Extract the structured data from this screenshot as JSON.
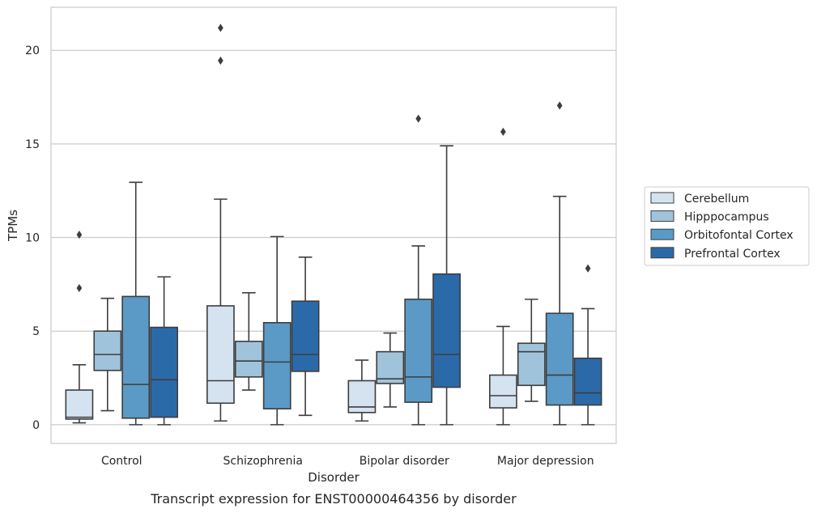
{
  "chart_data": {
    "type": "box",
    "caption": "Transcript expression for ENST00000464356 by disorder",
    "xlabel": "Disorder",
    "ylabel": "TPMs",
    "ylim": [
      -1,
      22.3
    ],
    "yticks": [
      0,
      5,
      10,
      15,
      20
    ],
    "grid": "horizontal",
    "legend_position": "right",
    "categories": [
      "Control",
      "Schizophrenia",
      "Bipolar disorder",
      "Major depression"
    ],
    "series": [
      {
        "name": "Cerebellum",
        "color": "#d5e3f1",
        "boxes": [
          {
            "whislo": 0.1,
            "q1": 0.3,
            "med": 0.4,
            "q3": 1.85,
            "whishi": 3.2,
            "fliers": [
              7.3,
              10.15
            ]
          },
          {
            "whislo": 0.2,
            "q1": 1.15,
            "med": 2.35,
            "q3": 6.35,
            "whishi": 12.05,
            "fliers": [
              19.45,
              21.2
            ]
          },
          {
            "whislo": 0.2,
            "q1": 0.65,
            "med": 0.95,
            "q3": 2.35,
            "whishi": 3.45,
            "fliers": []
          },
          {
            "whislo": 0.0,
            "q1": 0.9,
            "med": 1.55,
            "q3": 2.65,
            "whishi": 5.25,
            "fliers": [
              15.65
            ]
          }
        ]
      },
      {
        "name": "Hipppocampus",
        "color": "#9fc3da",
        "boxes": [
          {
            "whislo": 0.75,
            "q1": 2.9,
            "med": 3.75,
            "q3": 5.0,
            "whishi": 6.75,
            "fliers": []
          },
          {
            "whislo": 1.85,
            "q1": 2.55,
            "med": 3.4,
            "q3": 4.45,
            "whishi": 7.05,
            "fliers": []
          },
          {
            "whislo": 0.95,
            "q1": 2.2,
            "med": 2.45,
            "q3": 3.9,
            "whishi": 4.9,
            "fliers": []
          },
          {
            "whislo": 1.25,
            "q1": 2.1,
            "med": 3.9,
            "q3": 4.35,
            "whishi": 6.7,
            "fliers": []
          }
        ]
      },
      {
        "name": "Orbitofontal Cortex",
        "color": "#5b9ac6",
        "boxes": [
          {
            "whislo": 0.0,
            "q1": 0.35,
            "med": 2.15,
            "q3": 6.85,
            "whishi": 12.95,
            "fliers": []
          },
          {
            "whislo": 0.0,
            "q1": 0.85,
            "med": 3.35,
            "q3": 5.45,
            "whishi": 10.05,
            "fliers": []
          },
          {
            "whislo": 0.0,
            "q1": 1.2,
            "med": 2.55,
            "q3": 6.7,
            "whishi": 9.55,
            "fliers": [
              16.35
            ]
          },
          {
            "whislo": 0.0,
            "q1": 1.05,
            "med": 2.65,
            "q3": 5.95,
            "whishi": 12.2,
            "fliers": [
              17.05
            ]
          }
        ]
      },
      {
        "name": "Prefrontal Cortex",
        "color": "#2b6aa9",
        "boxes": [
          {
            "whislo": 0.0,
            "q1": 0.4,
            "med": 2.4,
            "q3": 5.2,
            "whishi": 7.9,
            "fliers": []
          },
          {
            "whislo": 0.5,
            "q1": 2.85,
            "med": 3.75,
            "q3": 6.6,
            "whishi": 8.95,
            "fliers": []
          },
          {
            "whislo": 0.0,
            "q1": 2.0,
            "med": 3.75,
            "q3": 8.05,
            "whishi": 14.9,
            "fliers": []
          },
          {
            "whislo": 0.0,
            "q1": 1.05,
            "med": 1.7,
            "q3": 3.55,
            "whishi": 6.2,
            "fliers": [
              8.35
            ]
          }
        ]
      }
    ]
  }
}
